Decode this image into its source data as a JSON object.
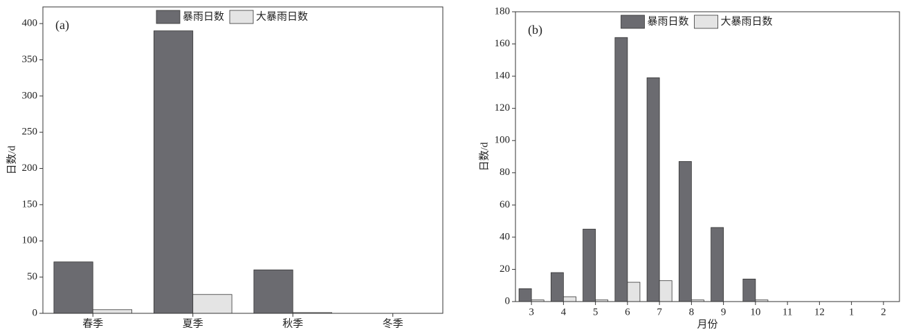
{
  "chart_data": [
    {
      "type": "bar",
      "annotation": "(a)",
      "ylabel": "日数/d",
      "categories": [
        "春季",
        "夏季",
        "秋季",
        "冬季"
      ],
      "series": [
        {
          "name": "暴雨日数",
          "color": "#6b6b70",
          "values": [
            71,
            390,
            60,
            0
          ]
        },
        {
          "name": "大暴雨日数",
          "color": "#e4e4e4",
          "values": [
            5,
            26,
            1,
            0
          ]
        }
      ],
      "ylim": [
        0,
        423
      ],
      "yticks": [
        0,
        50,
        100,
        150,
        200,
        250,
        300,
        350,
        400
      ]
    },
    {
      "type": "bar",
      "annotation": "(b)",
      "ylabel": "日数/d",
      "xlabel": "月份",
      "categories": [
        "3",
        "4",
        "5",
        "6",
        "7",
        "8",
        "9",
        "10",
        "11",
        "12",
        "1",
        "2"
      ],
      "series": [
        {
          "name": "暴雨日数",
          "color": "#6b6b70",
          "values": [
            8,
            18,
            45,
            164,
            139,
            87,
            46,
            14,
            0,
            0,
            0,
            0
          ]
        },
        {
          "name": "大暴雨日数",
          "color": "#e4e4e4",
          "values": [
            1,
            3,
            1,
            12,
            13,
            1,
            0,
            1,
            0,
            0,
            0,
            0
          ]
        }
      ],
      "ylim": [
        0,
        180
      ],
      "yticks": [
        0,
        20,
        40,
        60,
        80,
        100,
        120,
        140,
        160,
        180
      ]
    }
  ]
}
